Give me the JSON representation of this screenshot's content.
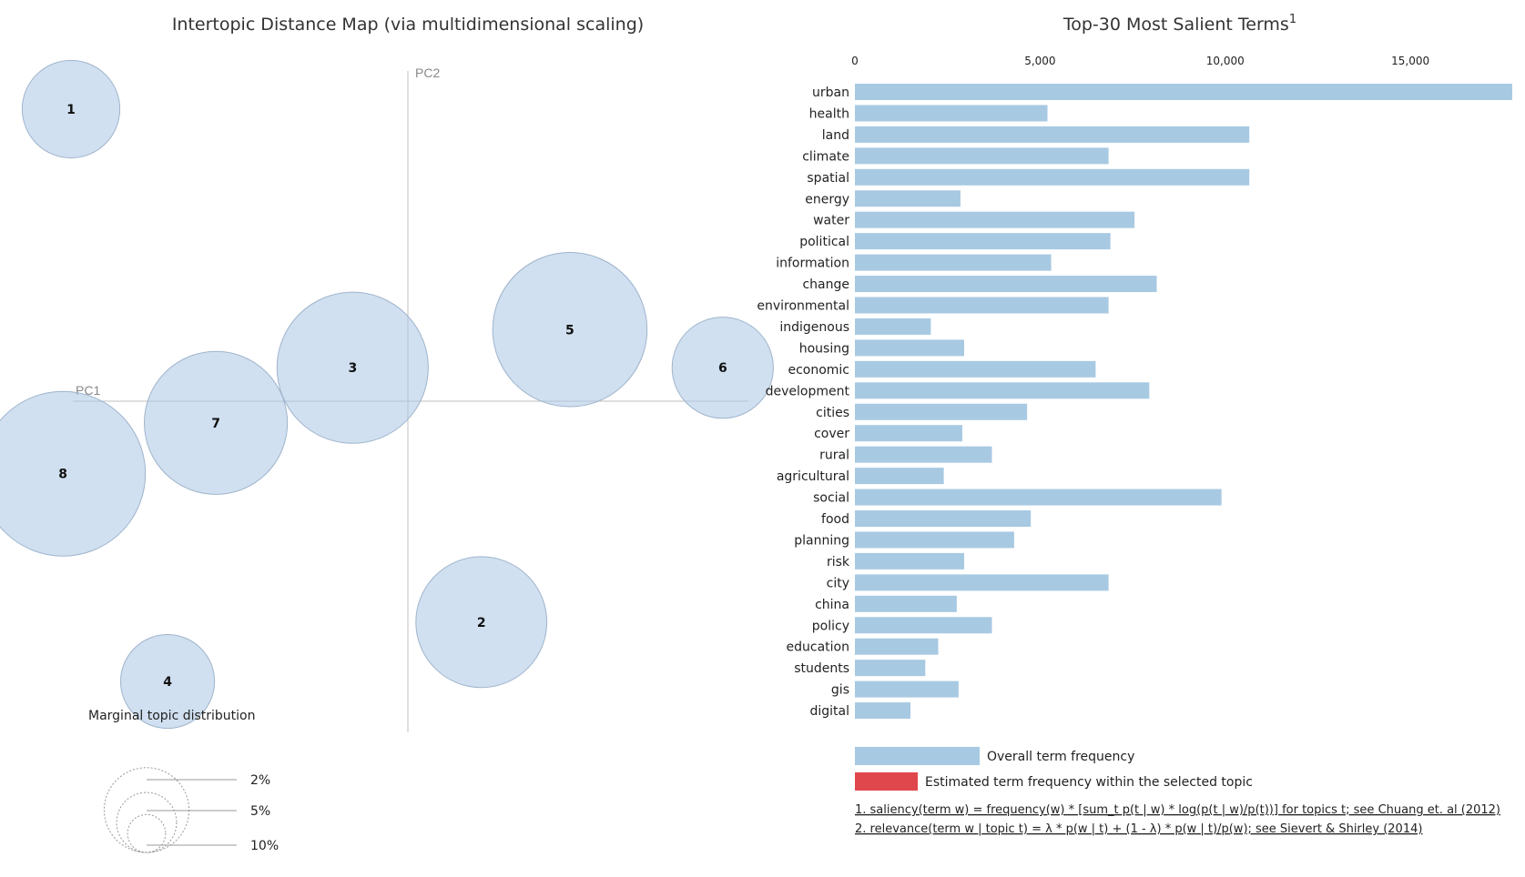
{
  "left_panel": {
    "title": "Intertopic Distance Map (via multidimensional scaling)",
    "pc1_label": "PC1",
    "pc2_label": "PC2",
    "marginal_title": "Marginal topic distribution",
    "size_labels": [
      "2%",
      "5%",
      "10%"
    ]
  },
  "right_panel": {
    "title": "Top-30 Most Salient Terms",
    "title_superscript": "1",
    "legend_overall": "Overall term frequency",
    "legend_estimated": "Estimated term frequency within the selected topic",
    "footnote_1": "1. saliency(term w) = frequency(w) * [sum_t p(t | w) * log(p(t | w)/p(t))] for topics t; see Chuang et. al (2012)",
    "footnote_2": "2. relevance(term w | topic t) = λ * p(w | t) + (1 - λ) * p(w | t)/p(w); see Sievert & Shirley (2014)"
  },
  "colors": {
    "bar_overall": "#a8c9e2",
    "bar_topic": "#e0474c",
    "circle_fill": "#aac7e3"
  },
  "chart_data": [
    {
      "type": "scatter",
      "title": "Intertopic Distance Map (via multidimensional scaling)",
      "xlabel": "PC1",
      "ylabel": "PC2",
      "xlim": [
        -0.45,
        0.47
      ],
      "ylim": [
        -0.39,
        0.39
      ],
      "topics": [
        {
          "label": "1",
          "x": -0.39,
          "y": 0.345,
          "size_pct": 4.0
        },
        {
          "label": "2",
          "x": 0.12,
          "y": -0.26,
          "size_pct": 7.2
        },
        {
          "label": "3",
          "x": -0.04,
          "y": 0.04,
          "size_pct": 9.6
        },
        {
          "label": "4",
          "x": -0.27,
          "y": -0.33,
          "size_pct": 3.7
        },
        {
          "label": "5",
          "x": 0.23,
          "y": 0.085,
          "size_pct": 10.0
        },
        {
          "label": "6",
          "x": 0.42,
          "y": 0.04,
          "size_pct": 4.3
        },
        {
          "label": "7",
          "x": -0.21,
          "y": -0.025,
          "size_pct": 8.6
        },
        {
          "label": "8",
          "x": -0.4,
          "y": -0.085,
          "size_pct": 11.4
        }
      ],
      "size_legend": [
        2,
        5,
        10
      ]
    },
    {
      "type": "bar",
      "orientation": "horizontal",
      "title": "Top-30 Most Salient Terms",
      "xlim": [
        0,
        17800
      ],
      "x_ticks": [
        0,
        5000,
        10000,
        15000
      ],
      "x_tick_labels": [
        "0",
        "5,000",
        "10,000",
        "15,000"
      ],
      "categories": [
        "urban",
        "health",
        "land",
        "climate",
        "spatial",
        "energy",
        "water",
        "political",
        "information",
        "change",
        "environmental",
        "indigenous",
        "housing",
        "economic",
        "development",
        "cities",
        "cover",
        "rural",
        "agricultural",
        "social",
        "food",
        "planning",
        "risk",
        "city",
        "china",
        "policy",
        "education",
        "students",
        "gis",
        "digital"
      ],
      "values": [
        17750,
        5200,
        10650,
        6850,
        10650,
        2850,
        7550,
        6900,
        5300,
        8150,
        6850,
        2050,
        2950,
        6500,
        7950,
        4650,
        2900,
        3700,
        2400,
        9900,
        4750,
        4300,
        2950,
        6850,
        2750,
        3700,
        2250,
        1900,
        2800,
        1500
      ]
    }
  ]
}
